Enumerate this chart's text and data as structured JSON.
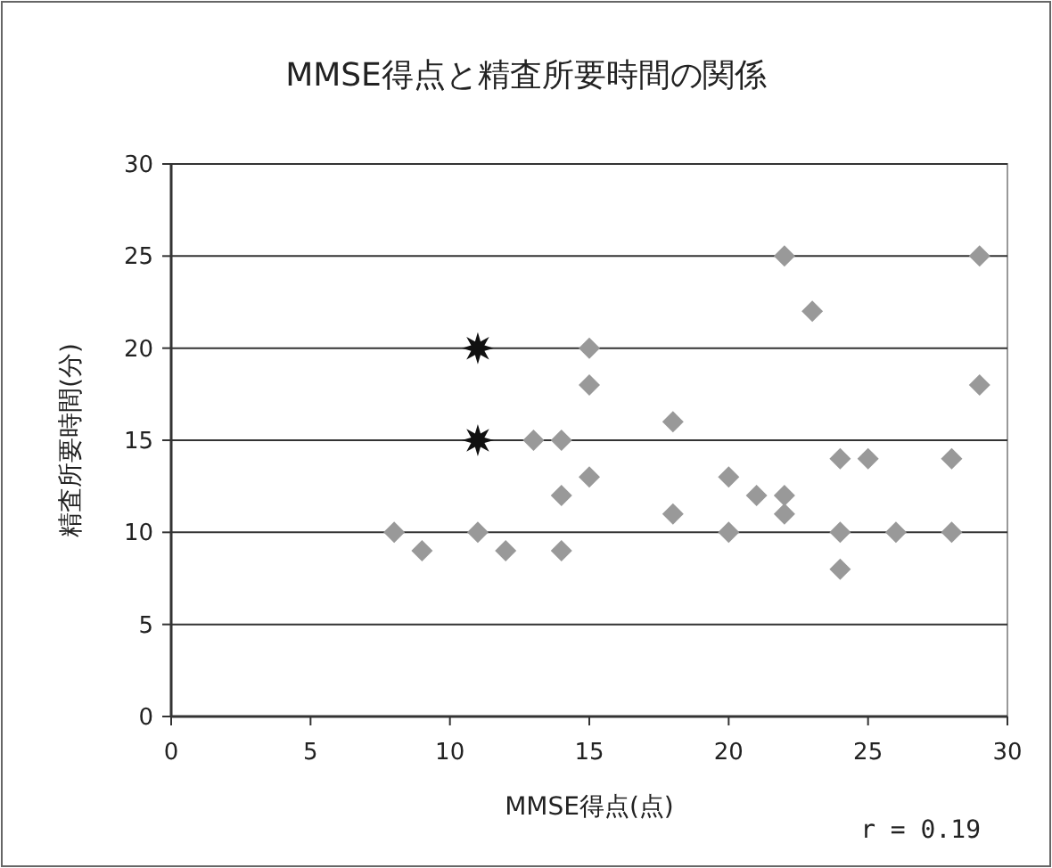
{
  "chart_data": {
    "type": "scatter",
    "title": "MMSE得点と精査所要時間の関係",
    "xlabel": "MMSE得点(点)",
    "ylabel": "精査所要時間(分)",
    "xlim": [
      0,
      30
    ],
    "ylim": [
      0,
      30
    ],
    "xticks": [
      0,
      5,
      10,
      15,
      20,
      25,
      30
    ],
    "yticks": [
      0,
      5,
      10,
      15,
      20,
      25,
      30
    ],
    "grid": "y",
    "series": [
      {
        "color": "#999999",
        "marker": "diamond",
        "x": [
          8,
          9,
          11,
          12,
          13,
          14,
          14,
          14,
          15,
          15,
          15,
          18,
          18,
          20,
          20,
          21,
          22,
          22,
          22,
          23,
          24,
          24,
          24,
          25,
          26,
          28,
          28,
          29,
          29
        ],
        "values": [
          10,
          9,
          10,
          9,
          15,
          15,
          12,
          9,
          20,
          18,
          13,
          16,
          11,
          13,
          10,
          12,
          25,
          12,
          11,
          22,
          14,
          10,
          8,
          14,
          10,
          14,
          10,
          25,
          18
        ]
      },
      {
        "color": "#111111",
        "marker": "star",
        "x": [
          11,
          11
        ],
        "values": [
          20,
          15
        ]
      }
    ],
    "annotations": [
      "r = 0.19"
    ]
  }
}
